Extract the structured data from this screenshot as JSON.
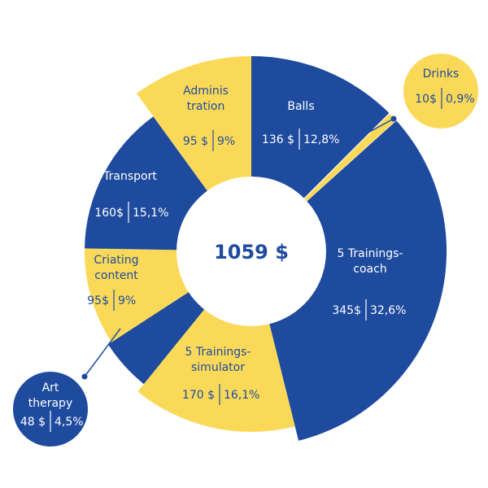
{
  "colors": {
    "blue": "#1e4b9e",
    "yellow": "#fbd958",
    "white": "#ffffff"
  },
  "chart_data": {
    "type": "pie",
    "style": "donut",
    "total_label": "1059 $",
    "slices": [
      {
        "name": "Balls",
        "name_lines": [
          "Balls"
        ],
        "value": 136,
        "value_label": "136 $",
        "pct_label": "12,8%",
        "color": "blue"
      },
      {
        "name": "Drinks",
        "name_lines": [
          "Drinks"
        ],
        "value": 10,
        "value_label": "10$",
        "pct_label": "0,9%",
        "color": "yellow",
        "callout": true
      },
      {
        "name": "5 Trainings-coach",
        "name_lines": [
          "5 Trainings-",
          "coach"
        ],
        "value": 345,
        "value_label": "345$",
        "pct_label": "32,6%",
        "color": "blue"
      },
      {
        "name": "5 Trainings-simulator",
        "name_lines": [
          "5 Trainings-",
          "simulator"
        ],
        "value": 170,
        "value_label": "170 $",
        "pct_label": "16,1%",
        "color": "yellow"
      },
      {
        "name": "Art therapy",
        "name_lines": [
          "Art",
          "therapy"
        ],
        "value": 48,
        "value_label": "48 $",
        "pct_label": "4,5%",
        "color": "blue",
        "callout": true
      },
      {
        "name": "Criating content",
        "name_lines": [
          "Criating",
          "content"
        ],
        "value": 95,
        "value_label": "95$",
        "pct_label": "9%",
        "color": "yellow"
      },
      {
        "name": "Transport",
        "name_lines": [
          "Transport"
        ],
        "value": 160,
        "value_label": "160$",
        "pct_label": "15,1%",
        "color": "blue"
      },
      {
        "name": "Administration",
        "name_lines": [
          "Adminis",
          "tration"
        ],
        "value": 95,
        "value_label": "95 $",
        "pct_label": "9%",
        "color": "yellow"
      }
    ]
  }
}
